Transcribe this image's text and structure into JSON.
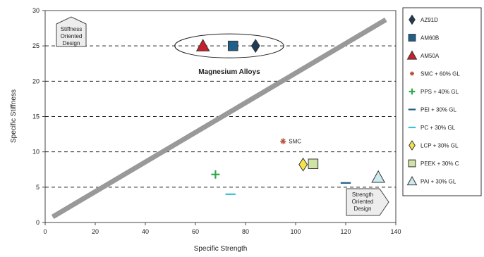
{
  "chart_data": {
    "type": "scatter",
    "xlabel": "Specific Strength",
    "ylabel": "Specific Stiffness",
    "xlim": [
      0,
      140
    ],
    "ylim": [
      0,
      30
    ],
    "x_ticks": [
      0,
      20,
      40,
      60,
      80,
      100,
      120,
      140
    ],
    "y_ticks": [
      0,
      5,
      10,
      15,
      20,
      25,
      30
    ],
    "grid": {
      "horizontal_dashed_at": [
        5,
        10,
        15,
        20,
        25
      ],
      "vertical": false
    },
    "legend_position": "right",
    "trend_line": {
      "from": [
        3,
        0.8
      ],
      "to": [
        136,
        28.7
      ],
      "color": "#999999"
    },
    "series": [
      {
        "name": "AZ91D",
        "marker": "diamond",
        "color": "#1f3b57",
        "x": 84,
        "y": 25
      },
      {
        "name": "AM60B",
        "marker": "square",
        "color": "#1f5f8b",
        "x": 75,
        "y": 25
      },
      {
        "name": "AM50A",
        "marker": "triangle",
        "color": "#c8202a",
        "x": 63,
        "y": 25
      },
      {
        "name": "SMC + 60% GL",
        "marker": "asterisk",
        "color": "#b5533c",
        "x": 95,
        "y": 11.5
      },
      {
        "name": "PPS + 40% GL",
        "marker": "plus",
        "color": "#2ea84a",
        "x": 68,
        "y": 6.8
      },
      {
        "name": "PEI + 30% GL",
        "marker": "dash",
        "color": "#1f5f8b",
        "x": 120,
        "y": 5.6
      },
      {
        "name": "PC + 30% GL",
        "marker": "dash",
        "color": "#3cc0d8",
        "x": 74,
        "y": 4.0
      },
      {
        "name": "LCP + 30% GL",
        "marker": "diamond",
        "color": "#f5e34a",
        "x": 103,
        "y": 8.2
      },
      {
        "name": "PEEK + 30% C",
        "marker": "square",
        "color": "#cfe3a6",
        "x": 107,
        "y": 8.3
      },
      {
        "name": "PAI + 30% GL",
        "marker": "triangle",
        "color": "#cdeaf0",
        "x": 133,
        "y": 6.4
      }
    ],
    "annotations": [
      {
        "text": "Stiffness Oriented Design",
        "lines": [
          "Stiffness",
          "Oriented",
          "Design"
        ],
        "kind": "pentagon-up"
      },
      {
        "text": "Strength Oriented Design",
        "lines": [
          "Strength",
          "Oriented",
          "Design"
        ],
        "kind": "pentagon-right"
      },
      {
        "text": "Magnesium Alloys",
        "kind": "ellipse-group"
      },
      {
        "text": "SMC",
        "kind": "point-label"
      }
    ]
  }
}
